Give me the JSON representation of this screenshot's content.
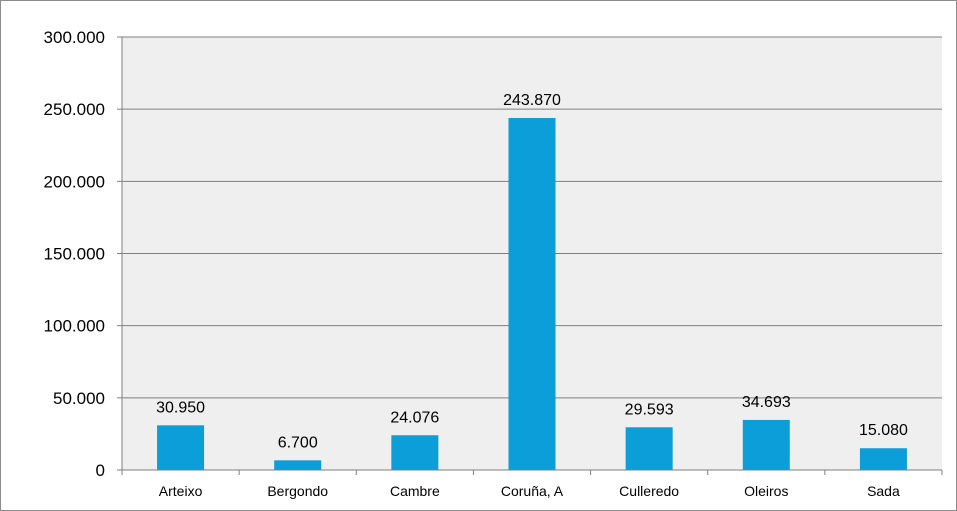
{
  "chart_data": {
    "type": "bar",
    "categories": [
      "Arteixo",
      "Bergondo",
      "Cambre",
      "Coruña, A",
      "Culleredo",
      "Oleiros",
      "Sada"
    ],
    "values": [
      30950,
      6700,
      24076,
      243870,
      29593,
      34693,
      15080
    ],
    "value_labels": [
      "30.950",
      "6.700",
      "24.076",
      "243.870",
      "29.593",
      "34.693",
      "15.080"
    ],
    "yticks": [
      0,
      50000,
      100000,
      150000,
      200000,
      250000,
      300000
    ],
    "ytick_labels": [
      "0",
      "50.000",
      "100.000",
      "150.000",
      "200.000",
      "250.000",
      "300.000"
    ],
    "ylim": [
      0,
      300000
    ],
    "grid": true,
    "bar_color": "#0b9ed9",
    "plot_background": "#efefef",
    "gridline_color": "#7f7f7f"
  }
}
